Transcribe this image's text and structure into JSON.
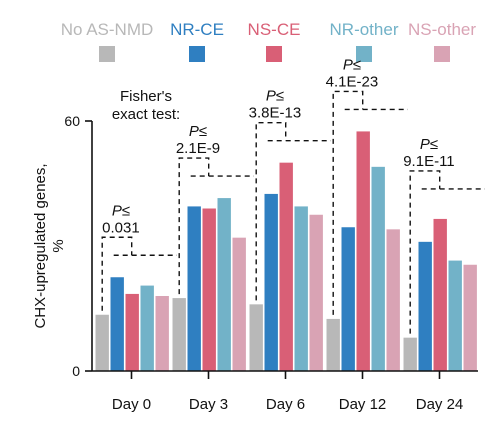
{
  "chart_data": {
    "type": "bar",
    "ylabel": "CHX-upregulated genes, %",
    "ylim": [
      0,
      60
    ],
    "yticks": [
      0,
      60
    ],
    "categories": [
      "Day 0",
      "Day 3",
      "Day 6",
      "Day 12",
      "Day 24"
    ],
    "series": [
      {
        "name": "No AS-NMD",
        "color": "#b8b8b8",
        "values": [
          13.5,
          17.5,
          16,
          12.5,
          8
        ]
      },
      {
        "name": "NR-CE",
        "color": "#2f7fc1",
        "values": [
          22.5,
          39.5,
          42.5,
          34.5,
          31
        ]
      },
      {
        "name": "NS-CE",
        "color": "#d95f76",
        "values": [
          18.5,
          39,
          50,
          57.5,
          36.5
        ]
      },
      {
        "name": "NR-other",
        "color": "#72b2c8",
        "values": [
          20.5,
          41.5,
          39.5,
          49,
          26.5
        ]
      },
      {
        "name": "NS-other",
        "color": "#d9a3b4",
        "values": [
          18,
          32,
          37.5,
          34,
          25.5
        ]
      }
    ],
    "legend_position": "top",
    "annotation_title": "Fisher's\nexact test:",
    "annotations": [
      {
        "category": "Day 0",
        "p_label": "P≤",
        "value": "0.031"
      },
      {
        "category": "Day 3",
        "p_label": "P≤",
        "value": "2.1E-9"
      },
      {
        "category": "Day 6",
        "p_label": "P≤",
        "value": "3.8E-13"
      },
      {
        "category": "Day 12",
        "p_label": "P≤",
        "value": "4.1E-23"
      },
      {
        "category": "Day 24",
        "p_label": "P≤",
        "value": "9.1E-11"
      }
    ]
  }
}
